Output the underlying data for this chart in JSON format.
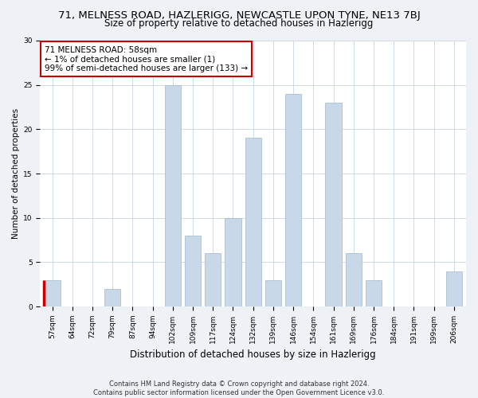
{
  "title_line1": "71, MELNESS ROAD, HAZLERIGG, NEWCASTLE UPON TYNE, NE13 7BJ",
  "title_line2": "Size of property relative to detached houses in Hazlerigg",
  "xlabel": "Distribution of detached houses by size in Hazlerigg",
  "ylabel": "Number of detached properties",
  "footer": "Contains HM Land Registry data © Crown copyright and database right 2024.\nContains public sector information licensed under the Open Government Licence v3.0.",
  "categories": [
    "57sqm",
    "64sqm",
    "72sqm",
    "79sqm",
    "87sqm",
    "94sqm",
    "102sqm",
    "109sqm",
    "117sqm",
    "124sqm",
    "132sqm",
    "139sqm",
    "146sqm",
    "154sqm",
    "161sqm",
    "169sqm",
    "176sqm",
    "184sqm",
    "191sqm",
    "199sqm",
    "206sqm"
  ],
  "values": [
    3,
    0,
    0,
    2,
    0,
    0,
    25,
    8,
    6,
    10,
    19,
    3,
    24,
    0,
    23,
    6,
    3,
    0,
    0,
    0,
    4
  ],
  "bar_color": "#c8d8e8",
  "bar_edge_color": "#a0b8cc",
  "highlight_color": "#cc0000",
  "annotation_box_text": "71 MELNESS ROAD: 58sqm\n← 1% of detached houses are smaller (1)\n99% of semi-detached houses are larger (133) →",
  "annotation_box_color": "#ffffff",
  "annotation_box_edge_color": "#cc0000",
  "ylim": [
    0,
    30
  ],
  "yticks": [
    0,
    5,
    10,
    15,
    20,
    25,
    30
  ],
  "background_color": "#eef2f7",
  "plot_background_color": "#ffffff",
  "grid_color": "#c8d4e0",
  "title_fontsize": 9.5,
  "subtitle_fontsize": 8.5,
  "xlabel_fontsize": 8.5,
  "ylabel_fontsize": 7.5,
  "tick_fontsize": 6.5,
  "annotation_fontsize": 7.5,
  "footer_fontsize": 6.0
}
